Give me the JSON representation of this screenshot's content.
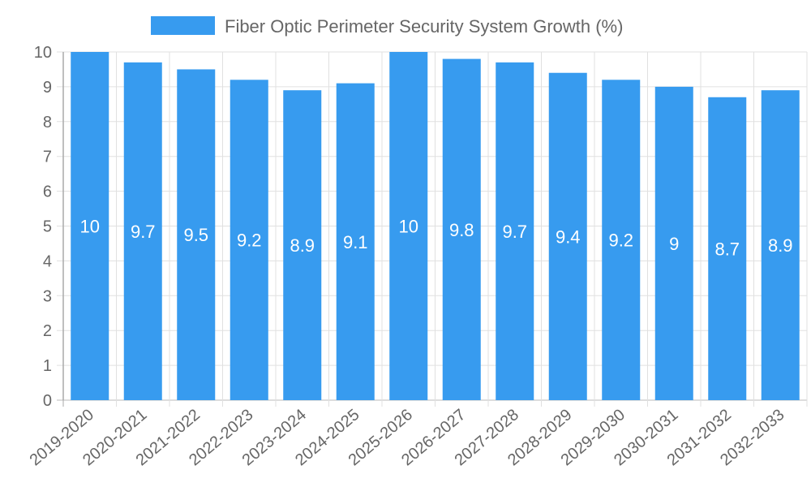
{
  "chart_data": {
    "type": "bar",
    "title": "",
    "legend": {
      "label": "Fiber Optic Perimeter Security System Growth (%)",
      "position": "top"
    },
    "categories": [
      "2019-2020",
      "2020-2021",
      "2021-2022",
      "2022-2023",
      "2023-2024",
      "2024-2025",
      "2025-2026",
      "2026-2027",
      "2027-2028",
      "2028-2029",
      "2029-2030",
      "2030-2031",
      "2031-2032",
      "2032-2033"
    ],
    "values": [
      10,
      9.7,
      9.5,
      9.2,
      8.9,
      9.1,
      10,
      9.8,
      9.7,
      9.4,
      9.2,
      9,
      8.7,
      8.9
    ],
    "data_labels": [
      "10",
      "9.7",
      "9.5",
      "9.2",
      "8.9",
      "9.1",
      "10",
      "9.8",
      "9.7",
      "9.4",
      "9.2",
      "9",
      "8.7",
      "8.9"
    ],
    "yticks": [
      "0",
      "1",
      "2",
      "3",
      "4",
      "5",
      "6",
      "7",
      "8",
      "9",
      "10"
    ],
    "ylim": [
      0,
      10
    ],
    "xlabel": "",
    "ylabel": "",
    "grid": true,
    "color": "#379BEF"
  }
}
